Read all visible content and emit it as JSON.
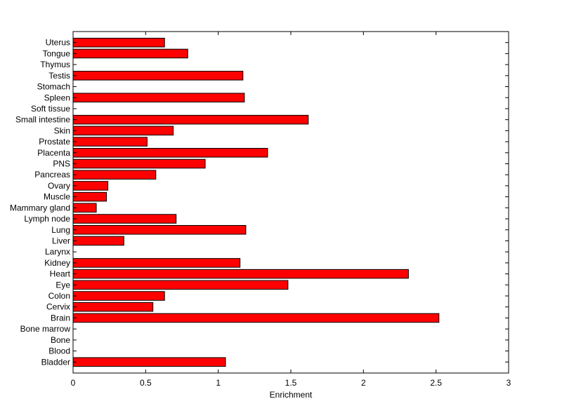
{
  "chart_data": {
    "type": "bar",
    "orientation": "horizontal",
    "title": "",
    "xlabel": "Enrichment",
    "ylabel": "",
    "xlim": [
      0,
      3
    ],
    "xticks": [
      0,
      0.5,
      1,
      1.5,
      2,
      2.5,
      3
    ],
    "xtick_labels": [
      "0",
      "0.5",
      "1",
      "1.5",
      "2",
      "2.5",
      "3"
    ],
    "grid": false,
    "legend": "none",
    "bar_color": "#ff0000",
    "bar_edge_color": "#000000",
    "categories": [
      "Bladder",
      "Blood",
      "Bone",
      "Bone marrow",
      "Brain",
      "Cervix",
      "Colon",
      "Eye",
      "Heart",
      "Kidney",
      "Larynx",
      "Liver",
      "Lung",
      "Lymph node",
      "Mammary gland",
      "Muscle",
      "Ovary",
      "Pancreas",
      "PNS",
      "Placenta",
      "Prostate",
      "Skin",
      "Small intestine",
      "Soft tissue",
      "Spleen",
      "Stomach",
      "Testis",
      "Thymus",
      "Tongue",
      "Uterus"
    ],
    "values": [
      1.05,
      0,
      0,
      0,
      2.52,
      0.55,
      0.63,
      1.48,
      2.31,
      1.15,
      0,
      0.35,
      1.19,
      0.71,
      0.16,
      0.23,
      0.24,
      0.57,
      0.91,
      1.34,
      0.51,
      0.69,
      1.62,
      0,
      1.18,
      0,
      1.17,
      0,
      0.79,
      0.63
    ]
  }
}
